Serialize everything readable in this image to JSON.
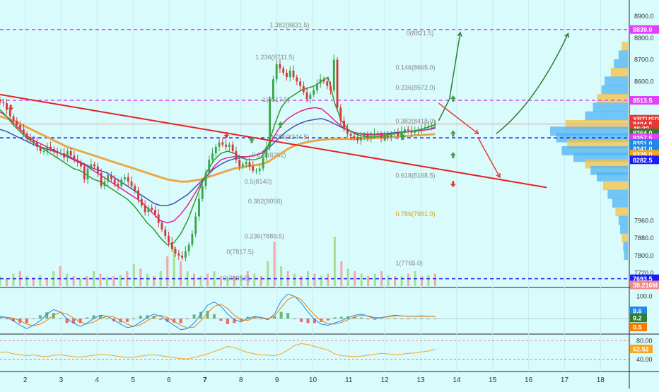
{
  "chart_data": {
    "type": "candlestick",
    "symbol": "XBTUSD",
    "x_ticks": [
      "2",
      "3",
      "4",
      "5",
      "6",
      "7",
      "8",
      "9",
      "10",
      "11",
      "12",
      "13",
      "14",
      "15",
      "16",
      "17",
      "18"
    ],
    "x_tick_days": [
      2,
      3,
      4,
      5,
      6,
      7,
      8,
      9,
      10,
      11,
      12,
      13,
      14,
      15,
      16,
      17,
      18
    ],
    "x_range": [
      1.3,
      18.8
    ],
    "price_ticks": [
      7720,
      7800,
      7880,
      7960,
      8600,
      8700,
      8800,
      8900
    ],
    "price_ticks_text": [
      "7720.0",
      "7800.0",
      "7880.0",
      "7960.0",
      "8600.0",
      "8700.0",
      "8800.0",
      "8900.0"
    ],
    "price_range": [
      7660,
      8955
    ],
    "price_badges": [
      {
        "text": "8839.0",
        "color": "#e040fb",
        "price": 8839
      },
      {
        "text": "8513.5",
        "color": "#e040fb",
        "price": 8513.5
      },
      {
        "text": "XBTUSD",
        "color": "#e53935",
        "price": 8427
      },
      {
        "text": "8404.5",
        "color": "#e53935",
        "price": 8404.5
      },
      {
        "text": "48:32",
        "color": "#e53935",
        "price": 8384
      },
      {
        "text": "8364.0",
        "color": "#2e7d32",
        "price": 8364
      },
      {
        "text": "8357.5",
        "color": "#e040fb",
        "price": 8341
      },
      {
        "text": "8351.0",
        "color": "#1e88e5",
        "price": 8316
      },
      {
        "text": "8341.0",
        "color": "#1e88e5",
        "price": 8291
      },
      {
        "text": "8325.0",
        "color": "#f5a623",
        "price": 8266
      },
      {
        "text": "8282.5",
        "color": "#1a1aff",
        "price": 8240
      },
      {
        "text": "7693.5",
        "color": "#1a1aff",
        "price": 7693.5
      },
      {
        "text": "38.216M",
        "color": "#ef8a8a",
        "price": 7665
      }
    ],
    "fib_levels": [
      {
        "text": "1.382(8831.5)",
        "day": 8.8,
        "price": 8860
      },
      {
        "text": "0(8821.5)",
        "day": 12.6,
        "price": 8821.5
      },
      {
        "text": "1.236(8711.5)",
        "day": 8.4,
        "price": 8711.5
      },
      {
        "text": "0.146(8665.0)",
        "day": 12.3,
        "price": 8665
      },
      {
        "text": "0.236(8572.0)",
        "day": 12.3,
        "price": 8572
      },
      {
        "text": "1(8517.5)",
        "day": 8.6,
        "price": 8517.5
      },
      {
        "text": "0.382(8418.0)",
        "day": 12.3,
        "price": 8418
      },
      {
        "text": "0.786(8344.5)",
        "day": 8.8,
        "price": 8344.5
      },
      {
        "text": "0.618(8262)",
        "day": 8.3,
        "price": 8262
      },
      {
        "text": "0.618(8168.5)",
        "day": 12.3,
        "price": 8168.5
      },
      {
        "text": "0.5(8140)",
        "day": 8.1,
        "price": 8140
      },
      {
        "text": "0.382(8050)",
        "day": 8.2,
        "price": 8050
      },
      {
        "text": "0.786(7991.0)",
        "day": 12.3,
        "price": 7991
      },
      {
        "text": "0.236(7889.5)",
        "day": 8.1,
        "price": 7889.5
      },
      {
        "text": "0(7817.5)",
        "day": 7.6,
        "price": 7817.5
      },
      {
        "text": "1(7765.0)",
        "day": 12.3,
        "price": 7765
      },
      {
        "text": "0(7695.5)",
        "day": 7.5,
        "price": 7695.5
      }
    ],
    "candles_close": [
      8505,
      8500,
      8470,
      8440,
      8420,
      8400,
      8380,
      8360,
      8345,
      8330,
      8320,
      8300,
      8280,
      8280,
      8300,
      8290,
      8280,
      8270,
      8270,
      8250,
      8280,
      8260,
      8240,
      8230,
      8210,
      8150,
      8200,
      8220,
      8210,
      8180,
      8120,
      8140,
      8170,
      8150,
      8130,
      8120,
      8150,
      8160,
      8140,
      8120,
      8100,
      8060,
      8030,
      8000,
      8020,
      8010,
      7990,
      7950,
      7920,
      7890,
      7860,
      7830,
      7810,
      7800,
      7790,
      7820,
      7850,
      7900,
      7980,
      8060,
      8120,
      8180,
      8240,
      8270,
      8300,
      8320,
      8310,
      8300,
      8310,
      8280,
      8240,
      8210,
      8220,
      8230,
      8210,
      8190,
      8190,
      8200,
      8250,
      8300,
      8520,
      8610,
      8680,
      8660,
      8640,
      8620,
      8650,
      8620,
      8600,
      8580,
      8550,
      8520,
      8540,
      8560,
      8590,
      8610,
      8600,
      8580,
      8560,
      8700,
      8480,
      8420,
      8380,
      8360,
      8350,
      8340,
      8330,
      8345,
      8355,
      8340,
      8350,
      8360,
      8355,
      8340,
      8350,
      8345,
      8360,
      8365,
      8350,
      8370,
      8380,
      8375,
      8365,
      8370,
      8380,
      8385,
      8390,
      8395,
      8400,
      8405
    ],
    "candle_day_range": [
      1.3,
      13.4
    ],
    "ema_green": [
      8470,
      8440,
      8400,
      8370,
      8340,
      8320,
      8300,
      8280,
      8260,
      8240,
      8220,
      8200,
      8190,
      8170,
      8150,
      8140,
      8120,
      8100,
      8080,
      8060,
      8030,
      7990,
      7950,
      7920,
      7880,
      7850,
      7860,
      7900,
      7960,
      8040,
      8120,
      8190,
      8240,
      8270,
      8280,
      8270,
      8250,
      8240,
      8240,
      8250,
      8300,
      8400,
      8480,
      8520,
      8540,
      8560,
      8570,
      8580,
      8600,
      8620,
      8500,
      8420,
      8380,
      8360,
      8350,
      8345,
      8345,
      8350,
      8355,
      8360,
      8365,
      8370,
      8375,
      8380,
      8390,
      8400
    ],
    "ema_blue": [
      8380,
      8370,
      8355,
      8340,
      8325,
      8310,
      8300,
      8290,
      8280,
      8270,
      8260,
      8245,
      8230,
      8215,
      8200,
      8190,
      8180,
      8160,
      8140,
      8120,
      8100,
      8080,
      8060,
      8040,
      8030,
      8030,
      8040,
      8060,
      8080,
      8110,
      8140,
      8170,
      8200,
      8220,
      8235,
      8245,
      8250,
      8255,
      8260,
      8270,
      8290,
      8320,
      8350,
      8375,
      8395,
      8410,
      8420,
      8425,
      8430,
      8420,
      8405,
      8390,
      8375,
      8365,
      8360,
      8358,
      8358,
      8360,
      8362,
      8365,
      8368,
      8370,
      8372,
      8375,
      8380,
      8385
    ],
    "ema_pink": [
      8460,
      8440,
      8410,
      8380,
      8350,
      8330,
      8315,
      8300,
      8285,
      8270,
      8255,
      8240,
      8225,
      8210,
      8190,
      8170,
      8150,
      8130,
      8110,
      8090,
      8070,
      8050,
      8020,
      7990,
      7960,
      7950,
      7960,
      7990,
      8030,
      8080,
      8130,
      8170,
      8210,
      8240,
      8250,
      8255,
      8255,
      8255,
      8260,
      8270,
      8300,
      8350,
      8400,
      8430,
      8450,
      8465,
      8475,
      8480,
      8475,
      8450,
      8420,
      8395,
      8375,
      8365,
      8358,
      8355,
      8355,
      8357,
      8360,
      8362,
      8365,
      8370,
      8372,
      8375,
      8380,
      8390
    ],
    "ema_orange": [
      8440,
      8430,
      8420,
      8405,
      8390,
      8375,
      8360,
      8345,
      8330,
      8315,
      8300,
      8290,
      8280,
      8270,
      8260,
      8250,
      8240,
      8230,
      8220,
      8210,
      8200,
      8190,
      8180,
      8170,
      8160,
      8150,
      8145,
      8140,
      8140,
      8145,
      8150,
      8160,
      8170,
      8180,
      8190,
      8200,
      8205,
      8210,
      8215,
      8220,
      8230,
      8250,
      8270,
      8290,
      8305,
      8315,
      8322,
      8328,
      8332,
      8335,
      8336,
      8336,
      8336,
      8336,
      8337,
      8338,
      8340,
      8342,
      8344,
      8346,
      8348,
      8350,
      8352,
      8354,
      8356,
      8358
    ],
    "ema_day_range": [
      1.3,
      13.4
    ],
    "trendline": {
      "from": {
        "day": 1.3,
        "price": 8540
      },
      "to": {
        "day": 16.5,
        "price": 8113
      },
      "color": "#e82020"
    },
    "horizontal_lines": [
      {
        "price": 8839,
        "color": "#e040fb",
        "style": "dashed"
      },
      {
        "price": 8513.5,
        "color": "#e040fb",
        "style": "dashed"
      },
      {
        "price": 8404.5,
        "color": "#ef9a9a",
        "style": "solid"
      },
      {
        "price": 8341,
        "color": "#1a1aff",
        "style": "dashed"
      },
      {
        "price": 7693.5,
        "color": "#1a1aff",
        "style": "dashed"
      }
    ],
    "projections": [
      {
        "color": "#2e7d32",
        "points": [
          [
            13.5,
            8420
          ],
          [
            13.8,
            8520
          ],
          [
            14.1,
            8825
          ]
        ]
      },
      {
        "color": "#2e7d32",
        "points": [
          [
            15.1,
            8360
          ],
          [
            16.2,
            8470
          ],
          [
            17.1,
            8820
          ]
        ],
        "curved": true
      },
      {
        "color": "#e53935",
        "points": [
          [
            13.5,
            8500
          ],
          [
            14.6,
            8360
          ]
        ]
      },
      {
        "color": "#e53935",
        "points": [
          [
            14.6,
            8340
          ],
          [
            15.2,
            8160
          ]
        ]
      }
    ],
    "markers": [
      {
        "day": 1.6,
        "price": 8480,
        "dir": "down",
        "color": "#e53935"
      },
      {
        "day": 7.6,
        "price": 8355,
        "dir": "down",
        "color": "#e53935"
      },
      {
        "day": 8.3,
        "price": 8330,
        "dir": "up",
        "color": "#43a047"
      },
      {
        "day": 9.1,
        "price": 8400,
        "dir": "up",
        "color": "#43a047"
      },
      {
        "day": 12.0,
        "price": 8340,
        "dir": "up",
        "color": "#43a047"
      },
      {
        "day": 12.5,
        "price": 8345,
        "dir": "up",
        "color": "#43a047"
      },
      {
        "day": 13.9,
        "price": 8520,
        "dir": "up",
        "color": "#43a047"
      },
      {
        "day": 13.9,
        "price": 8360,
        "dir": "up",
        "color": "#43a047"
      },
      {
        "day": 13.9,
        "price": 8260,
        "dir": "up",
        "color": "#43a047"
      },
      {
        "day": 13.9,
        "price": 8130,
        "dir": "down",
        "color": "#e53935"
      }
    ],
    "volume_profile": [
      {
        "price": 8760,
        "value": 0.08
      },
      {
        "price": 8720,
        "value": 0.12
      },
      {
        "price": 8680,
        "value": 0.18
      },
      {
        "price": 8640,
        "value": 0.22
      },
      {
        "price": 8600,
        "value": 0.3
      },
      {
        "price": 8560,
        "value": 0.34
      },
      {
        "price": 8520,
        "value": 0.4
      },
      {
        "price": 8480,
        "value": 0.45
      },
      {
        "price": 8440,
        "value": 0.55
      },
      {
        "price": 8400,
        "value": 0.8
      },
      {
        "price": 8370,
        "value": 1.0
      },
      {
        "price": 8340,
        "value": 0.92
      },
      {
        "price": 8310,
        "value": 0.78
      },
      {
        "price": 8280,
        "value": 0.85
      },
      {
        "price": 8250,
        "value": 0.7
      },
      {
        "price": 8220,
        "value": 0.55
      },
      {
        "price": 8190,
        "value": 0.48
      },
      {
        "price": 8160,
        "value": 0.4
      },
      {
        "price": 8120,
        "value": 0.32
      },
      {
        "price": 8080,
        "value": 0.26
      },
      {
        "price": 8040,
        "value": 0.2
      },
      {
        "price": 8000,
        "value": 0.16
      },
      {
        "price": 7960,
        "value": 0.12
      },
      {
        "price": 7920,
        "value": 0.1
      },
      {
        "price": 7880,
        "value": 0.08
      },
      {
        "price": 7840,
        "value": 0.06
      },
      {
        "price": 7800,
        "value": 0.05
      }
    ],
    "macd": {
      "ticks_text": [
        "100.0",
        "0.0"
      ],
      "ticks": [
        100,
        0
      ],
      "range": [
        -60,
        130
      ],
      "badges": [
        {
          "text": "9.6",
          "color": "#1e88e5",
          "value": 9.6
        },
        {
          "text": "9.2",
          "color": "#2e7d32",
          "value": 9.2
        },
        {
          "text": "0.5",
          "color": "#f57c00",
          "value": 0.5
        }
      ],
      "macd_line": [
        10,
        5,
        -10,
        -30,
        -45,
        -30,
        -10,
        20,
        40,
        30,
        0,
        -20,
        -35,
        -20,
        0,
        15,
        10,
        -5,
        -25,
        -40,
        -35,
        -15,
        5,
        20,
        10,
        -10,
        -30,
        -50,
        -45,
        -20,
        20,
        60,
        75,
        55,
        20,
        -5,
        -15,
        0,
        10,
        5,
        -5,
        20,
        80,
        110,
        100,
        70,
        30,
        -5,
        -25,
        -30,
        -20,
        -10,
        5,
        15,
        20,
        10,
        0,
        5,
        10,
        15,
        12,
        10,
        11,
        12,
        10,
        10
      ],
      "signal_line": [
        5,
        6,
        2,
        -10,
        -25,
        -32,
        -25,
        -8,
        15,
        28,
        20,
        2,
        -15,
        -25,
        -15,
        0,
        10,
        8,
        -8,
        -25,
        -35,
        -28,
        -10,
        8,
        15,
        5,
        -12,
        -30,
        -42,
        -38,
        -10,
        25,
        55,
        65,
        45,
        15,
        -5,
        -8,
        2,
        6,
        0,
        10,
        50,
        85,
        100,
        85,
        50,
        15,
        -10,
        -22,
        -25,
        -18,
        -5,
        8,
        15,
        12,
        5,
        4,
        8,
        12,
        12,
        11,
        10,
        10,
        10,
        9
      ]
    },
    "rsi": {
      "ticks_text": [
        "80.00",
        "40.00"
      ],
      "ticks": [
        80,
        40
      ],
      "range": [
        20,
        90
      ],
      "badge": {
        "text": "62.52",
        "color": "#f5a623",
        "value": 62.52
      },
      "values": [
        55,
        56,
        52,
        50,
        48,
        50,
        47,
        46,
        49,
        50,
        48,
        46,
        45,
        47,
        49,
        51,
        50,
        48,
        46,
        44,
        45,
        47,
        49,
        50,
        48,
        46,
        44,
        42,
        41,
        44,
        48,
        52,
        57,
        62,
        68,
        66,
        60,
        55,
        52,
        50,
        49,
        48,
        52,
        60,
        70,
        74,
        72,
        68,
        64,
        60,
        52,
        48,
        47,
        46,
        47,
        49,
        51,
        53,
        52,
        50,
        51,
        53,
        54,
        56,
        58,
        62
      ]
    },
    "volume_bars": [
      0.2,
      0.15,
      0.25,
      0.3,
      0.2,
      0.18,
      0.22,
      0.15,
      0.3,
      0.4,
      0.25,
      0.2,
      0.15,
      0.2,
      0.3,
      0.25,
      0.18,
      0.2,
      0.22,
      0.3,
      0.45,
      0.35,
      0.25,
      0.2,
      0.3,
      0.6,
      0.8,
      0.5,
      0.3,
      0.25,
      0.2,
      0.25,
      0.3,
      0.2,
      0.18,
      0.2,
      0.22,
      0.3,
      0.25,
      0.2,
      0.5,
      0.9,
      0.4,
      0.3,
      0.25,
      0.2,
      0.3,
      0.25,
      0.2,
      0.25,
      1.0,
      0.5,
      0.35,
      0.3,
      0.25,
      0.2,
      0.25,
      0.3,
      0.22,
      0.2,
      0.2,
      0.25,
      0.3,
      0.2,
      0.22,
      0.25
    ]
  }
}
